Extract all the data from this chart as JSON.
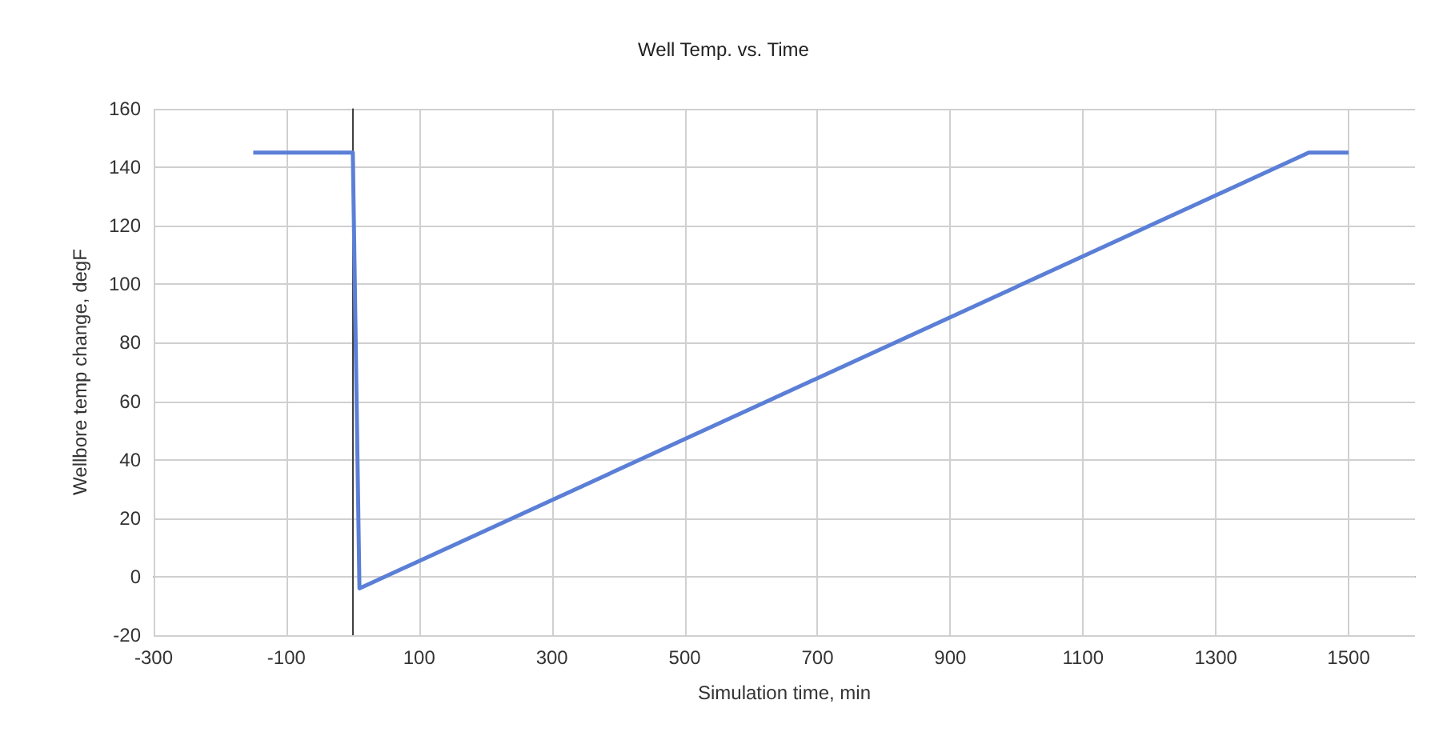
{
  "chart_data": {
    "type": "line",
    "title": "Well Temp. vs. Time",
    "xlabel": "Simulation time, min",
    "ylabel": "Wellbore temp change, degF",
    "x": [
      -150,
      0,
      10,
      1440,
      1500
    ],
    "series": [
      {
        "color": "#5b7fd6",
        "values": [
          145,
          145,
          -4,
          145,
          145
        ]
      }
    ],
    "xlim": [
      -300,
      1600
    ],
    "xticks": [
      -300,
      -100,
      100,
      300,
      500,
      700,
      900,
      1100,
      1300,
      1500
    ],
    "ylim": [
      -20,
      160
    ],
    "yticks": [
      -20,
      0,
      20,
      40,
      60,
      80,
      100,
      120,
      140,
      160
    ],
    "ref_lines": [
      {
        "axis": "x",
        "value": 0,
        "color": "#404040"
      }
    ],
    "grid": true,
    "marker": "none",
    "line_style": "solid"
  }
}
